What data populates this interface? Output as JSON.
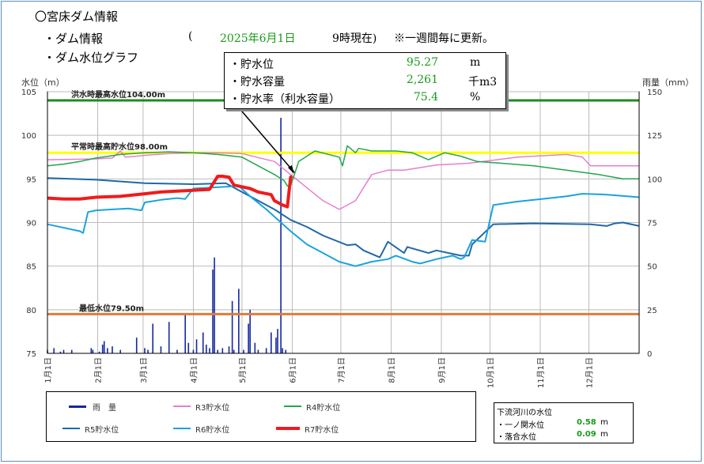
{
  "header": {
    "title": "〇宮床ダム情報",
    "dam_info": "・ダム情報",
    "date_open": "(",
    "date": "2025年6月1日",
    "time": "9時現在)",
    "note": "※一週間毎に更新。",
    "graph_title": "・ダム水位グラフ"
  },
  "popup": {
    "level_label": "・貯水位",
    "level_value": "95.27",
    "level_unit": "m",
    "volume_label": "・貯水容量",
    "volume_value": "2,261",
    "volume_unit": "千m3",
    "rate_label": "・貯水率（利水容量）",
    "rate_value": "75.4",
    "rate_unit": "%"
  },
  "legend": {
    "rain": "雨　量",
    "r3": "R3貯水位",
    "r4": "R4貯水位",
    "r5": "R5貯水位",
    "r6": "R6貯水位",
    "r7": "R7貯水位"
  },
  "river": {
    "title": "下流河川の水位",
    "s1_label": "・一ノ関水位",
    "s1_value": "0.58",
    "s1_unit": "m",
    "s2_label": "・落合水位",
    "s2_value": "0.09",
    "s2_unit": "m"
  },
  "chart_data": {
    "type": "line",
    "ylabel": "水位（m）",
    "y2label": "雨量（mm）",
    "ylim": [
      75,
      105
    ],
    "y2lim": [
      0,
      150
    ],
    "yticks": [
      75,
      80,
      85,
      90,
      95,
      100,
      105
    ],
    "y2ticks": [
      0,
      25,
      50,
      75,
      100,
      125,
      150
    ],
    "xticks": [
      "1月1日",
      "2月1日",
      "3月1日",
      "4月1日",
      "5月1日",
      "6月1日",
      "7月1日",
      "8月1日",
      "9月1日",
      "10月1日",
      "11月1日",
      "12月1日"
    ],
    "xlim_days": [
      0,
      365
    ],
    "reference_lines": [
      {
        "label": "洪水時最高水位104.00m",
        "value": 104.0,
        "color": "#1f8a1f"
      },
      {
        "label": "平常時最高貯水位98.00m",
        "value": 98.0,
        "color": "#ffff00"
      },
      {
        "label": "最低水位79.50m",
        "value": 79.5,
        "color": "#e07b39"
      }
    ],
    "rain": {
      "name": "雨　量",
      "color": "#1428a0",
      "day": [
        0,
        4,
        8,
        10,
        15,
        27,
        28,
        32,
        34,
        35,
        37,
        40,
        45,
        55,
        60,
        62,
        65,
        70,
        75,
        80,
        85,
        87,
        90,
        92,
        96,
        98,
        100,
        102,
        103,
        105,
        108,
        112,
        114,
        115,
        118,
        121,
        124,
        125,
        128,
        130,
        135,
        138,
        141,
        142,
        144,
        145,
        147
      ],
      "mm": [
        2,
        3,
        1,
        2,
        2,
        3,
        2,
        1,
        5,
        7,
        3,
        4,
        2,
        9,
        3,
        2,
        17,
        4,
        18,
        2,
        22,
        6,
        2,
        8,
        12,
        5,
        3,
        48,
        55,
        2,
        3,
        4,
        30,
        2,
        37,
        2,
        17,
        25,
        6,
        2,
        3,
        12,
        9,
        14,
        135,
        3,
        2
      ]
    },
    "series": [
      {
        "name": "R3貯水位",
        "color": "#e67ecf",
        "width": 1.5,
        "x": [
          0,
          30,
          40,
          45,
          48,
          55,
          60,
          75,
          90,
          105,
          120,
          140,
          150,
          160,
          170,
          180,
          190,
          200,
          210,
          220,
          240,
          260,
          290,
          320,
          330,
          335,
          350,
          365
        ],
        "y": [
          97.2,
          97.3,
          97.4,
          98.2,
          97.5,
          97.6,
          97.7,
          97.9,
          98.0,
          98.0,
          97.9,
          97.0,
          95.5,
          94.0,
          92.5,
          91.5,
          92.5,
          95.5,
          96.0,
          96.0,
          96.6,
          96.8,
          97.5,
          97.8,
          97.5,
          96.5,
          96.5,
          96.5
        ]
      },
      {
        "name": "R4貯水位",
        "color": "#22a64a",
        "width": 1.5,
        "x": [
          0,
          10,
          20,
          30,
          45,
          60,
          75,
          90,
          105,
          120,
          130,
          140,
          146,
          148,
          150,
          155,
          165,
          180,
          182,
          185,
          190,
          192,
          200,
          215,
          225,
          235,
          245,
          255,
          265,
          280,
          300,
          320,
          340,
          355,
          365
        ],
        "y": [
          96.5,
          96.7,
          97.0,
          97.4,
          97.8,
          98.0,
          98.1,
          98.0,
          97.8,
          97.5,
          96.5,
          95.5,
          94.8,
          94.2,
          94.2,
          97.0,
          98.2,
          97.5,
          96.5,
          98.8,
          98.0,
          98.5,
          98.2,
          98.2,
          98.0,
          97.2,
          98.0,
          97.6,
          97.0,
          96.8,
          96.5,
          96.0,
          95.5,
          95.0,
          95.0
        ]
      },
      {
        "name": "R5貯水位",
        "color": "#2068a8",
        "width": 2,
        "x": [
          0,
          30,
          60,
          90,
          110,
          120,
          125,
          140,
          150,
          160,
          170,
          185,
          190,
          195,
          205,
          210,
          220,
          222,
          235,
          240,
          255,
          260,
          262,
          275,
          300,
          335,
          345,
          350,
          355,
          365
        ],
        "y": [
          95.1,
          94.9,
          94.5,
          94.4,
          94.5,
          93.5,
          93.0,
          91.5,
          90.3,
          89.5,
          88.5,
          87.4,
          87.5,
          86.8,
          86.0,
          87.8,
          86.5,
          87.2,
          86.5,
          86.8,
          86.2,
          86.2,
          87.5,
          89.8,
          89.9,
          89.8,
          89.6,
          89.9,
          90.0,
          89.6
        ]
      },
      {
        "name": "R6貯水位",
        "color": "#1aa3de",
        "width": 2,
        "x": [
          0,
          20,
          22,
          25,
          30,
          50,
          58,
          60,
          70,
          80,
          85,
          90,
          100,
          110,
          118,
          125,
          135,
          150,
          160,
          170,
          180,
          190,
          200,
          210,
          215,
          225,
          230,
          240,
          245,
          250,
          255,
          257,
          262,
          270,
          275,
          290,
          305,
          320,
          330,
          345,
          365
        ],
        "y": [
          89.8,
          89.0,
          88.8,
          91.2,
          91.4,
          91.6,
          91.4,
          92.3,
          92.6,
          92.8,
          92.7,
          93.9,
          94.0,
          94.1,
          94.2,
          93.0,
          91.5,
          89.0,
          87.5,
          86.5,
          85.5,
          85.0,
          85.5,
          85.8,
          86.2,
          85.5,
          85.3,
          85.8,
          86.0,
          86.2,
          85.8,
          86.0,
          88.0,
          87.8,
          92.0,
          92.4,
          92.7,
          93.0,
          93.3,
          93.2,
          92.9
        ]
      },
      {
        "name": "R7貯水位",
        "color": "#ee1c1c",
        "width": 4,
        "x": [
          0,
          10,
          20,
          30,
          45,
          60,
          70,
          80,
          90,
          100,
          105,
          108,
          112,
          115,
          120,
          125,
          130,
          138,
          140,
          145,
          148,
          150,
          151
        ],
        "y": [
          92.8,
          92.7,
          92.7,
          92.9,
          93.0,
          93.3,
          93.5,
          93.6,
          93.7,
          93.8,
          95.3,
          95.3,
          95.2,
          94.3,
          94.1,
          93.9,
          93.5,
          93.2,
          92.5,
          92.0,
          91.8,
          95.2,
          95.3
        ]
      }
    ]
  }
}
